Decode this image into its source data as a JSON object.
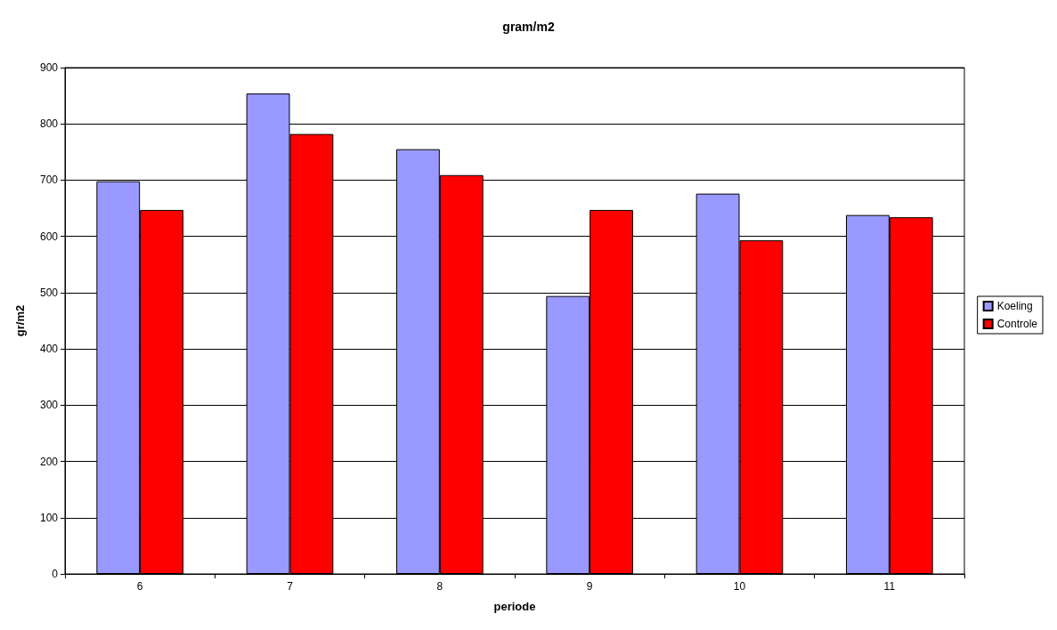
{
  "chart_data": {
    "type": "bar",
    "title": "gram/m2",
    "xlabel": "periode",
    "ylabel": "gr/m2",
    "categories": [
      "6",
      "7",
      "8",
      "9",
      "10",
      "11"
    ],
    "series": [
      {
        "name": "Koeling",
        "color": "#9999ff",
        "values": [
          698,
          854,
          755,
          494,
          676,
          638
        ]
      },
      {
        "name": "Controle",
        "color": "#ff0000",
        "values": [
          647,
          782,
          709,
          647,
          593,
          634
        ]
      }
    ],
    "ylim": [
      0,
      900
    ],
    "yticks": [
      0,
      100,
      200,
      300,
      400,
      500,
      600,
      700,
      800,
      900
    ],
    "grid": "y",
    "legend": "right"
  }
}
